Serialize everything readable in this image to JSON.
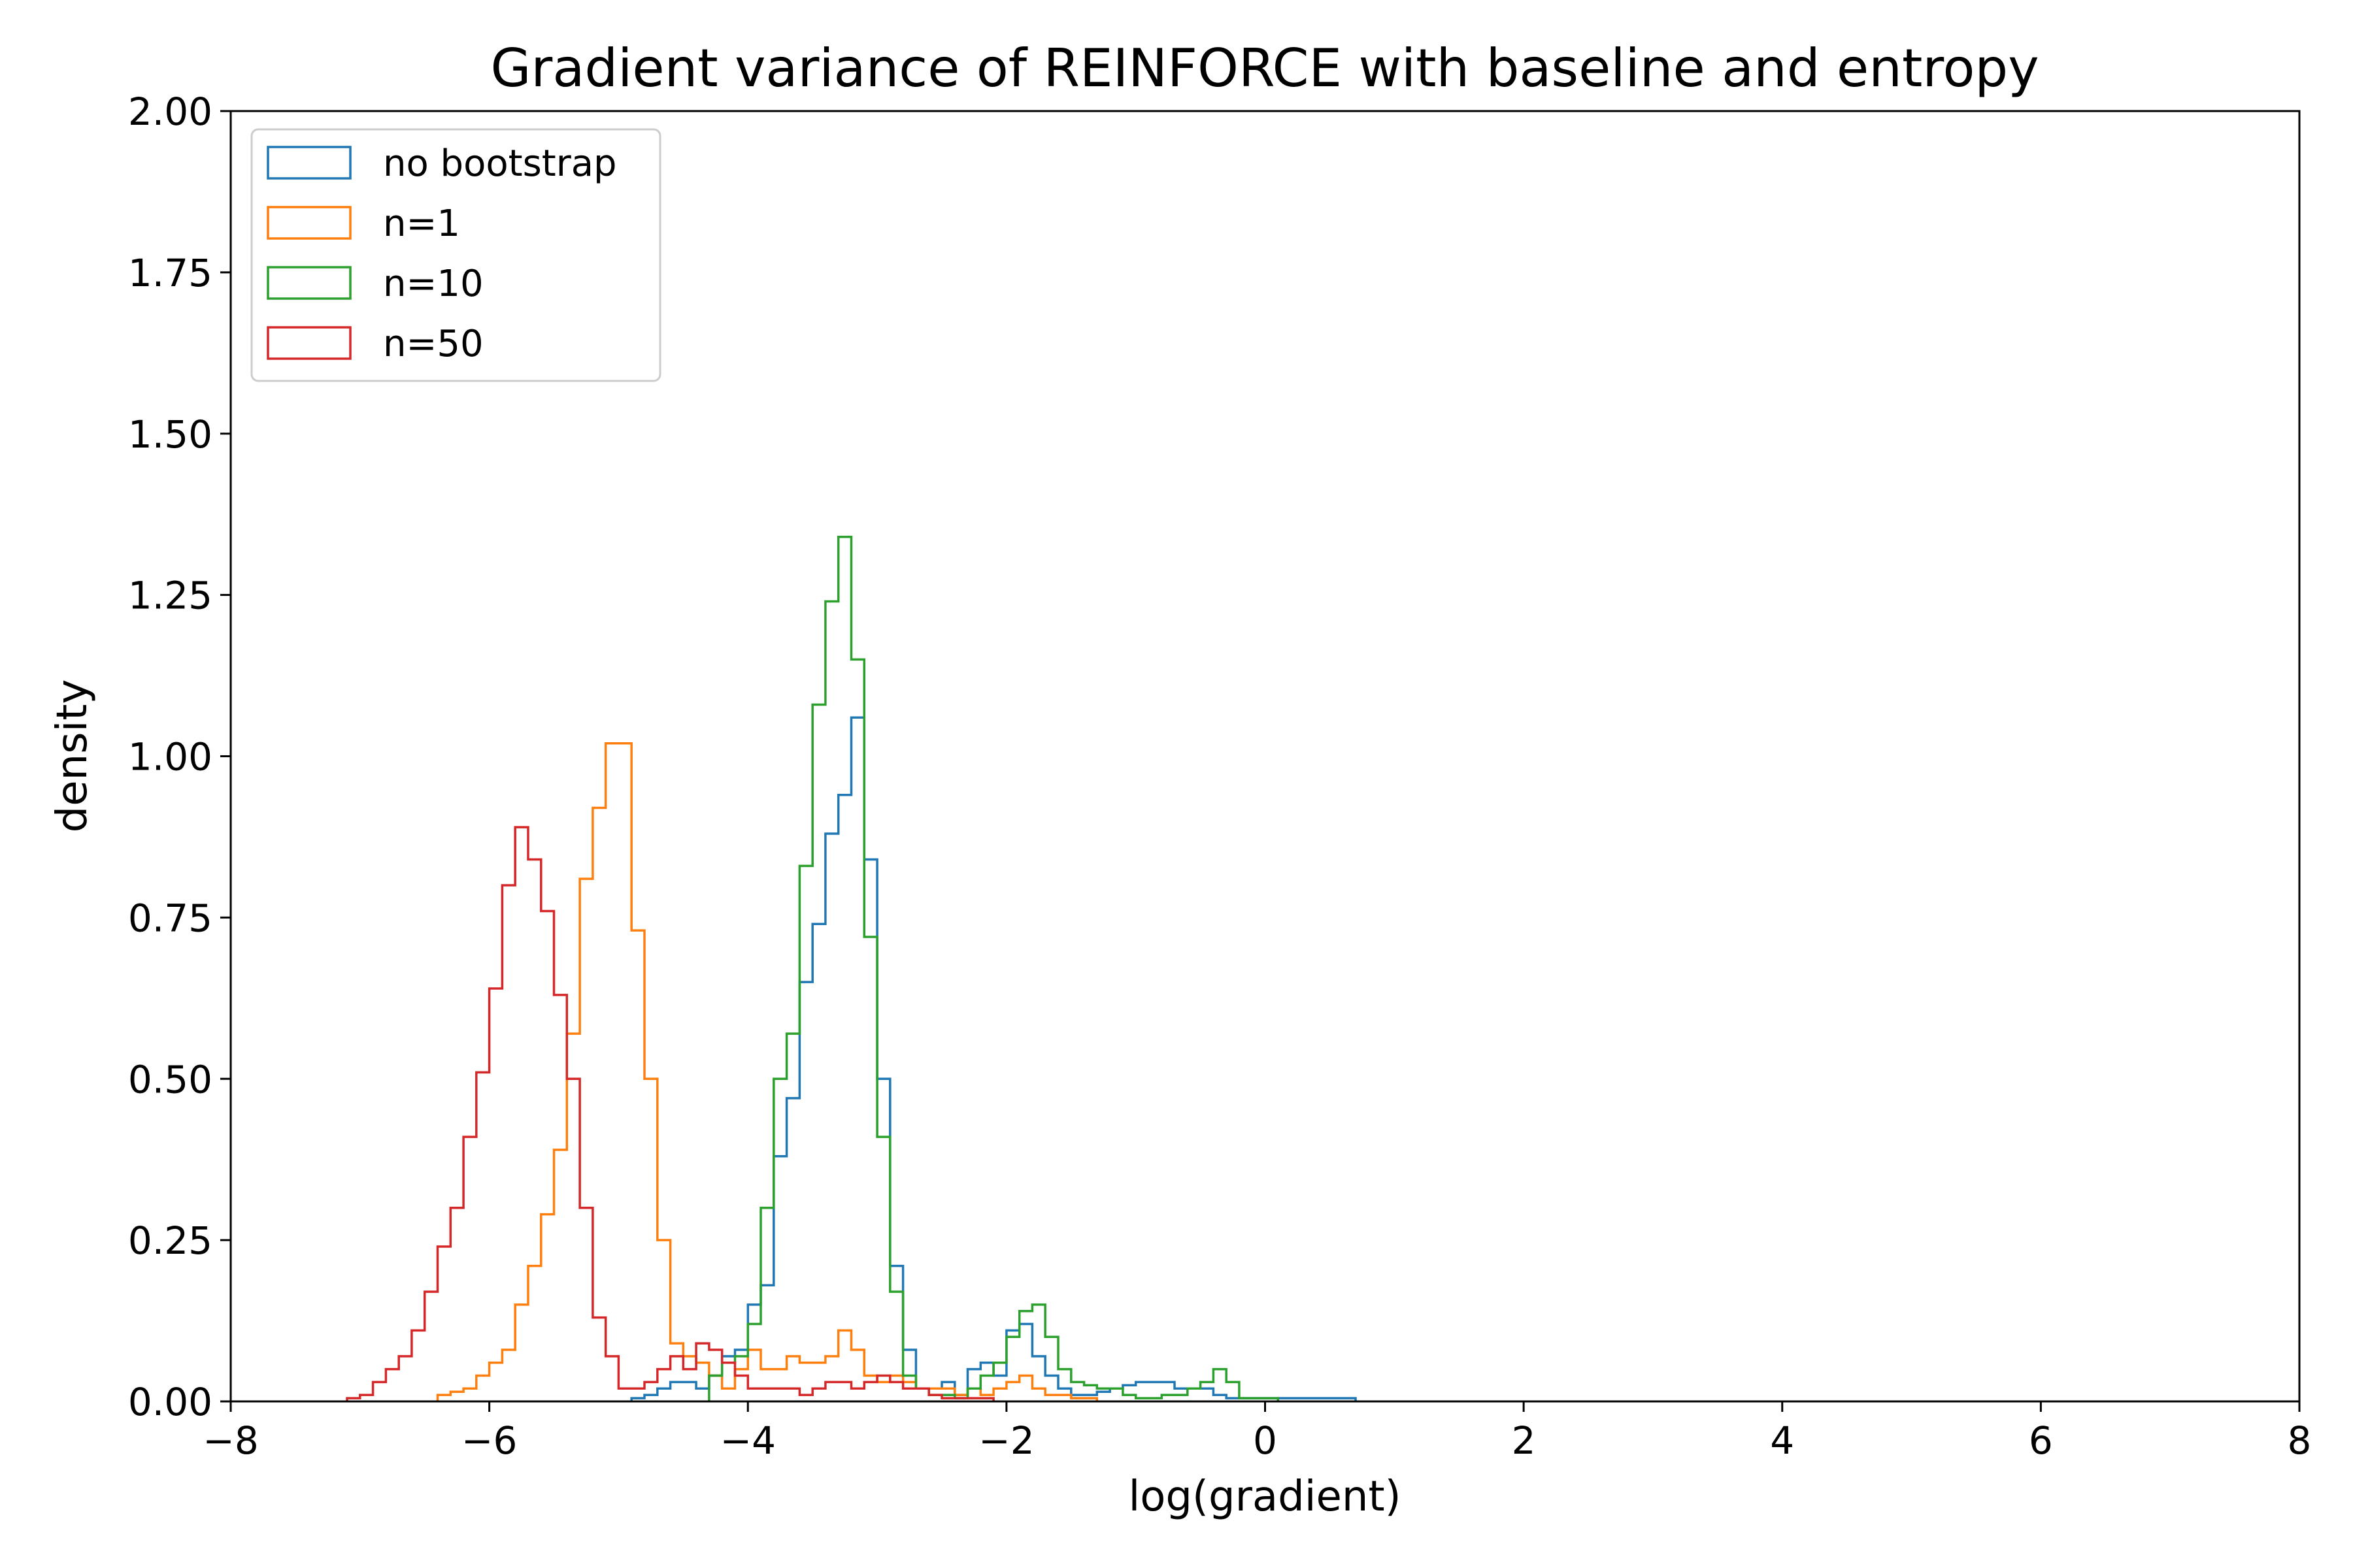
{
  "chart_data": {
    "type": "histogram",
    "title": "Gradient variance of REINFORCE with baseline and entropy",
    "xlabel": "log(gradient)",
    "ylabel": "density",
    "xlim": [
      -8,
      8
    ],
    "ylim": [
      0,
      2
    ],
    "xticks": [
      -8,
      -6,
      -4,
      -2,
      0,
      2,
      4,
      6,
      8
    ],
    "xtick_labels": [
      "−8",
      "−6",
      "−4",
      "−2",
      "0",
      "2",
      "4",
      "6",
      "8"
    ],
    "yticks": [
      0,
      0.25,
      0.5,
      0.75,
      1.0,
      1.25,
      1.5,
      1.75,
      2.0
    ],
    "ytick_labels": [
      "0.00",
      "0.25",
      "0.50",
      "0.75",
      "1.00",
      "1.25",
      "1.50",
      "1.75",
      "2.00"
    ],
    "grid": false,
    "legend_position": "upper-left",
    "series": [
      {
        "name": "no bootstrap",
        "color": "#1f77b4",
        "bin_edges": [
          -4.9,
          -4.8,
          -4.7,
          -4.6,
          -4.5,
          -4.4,
          -4.3,
          -4.2,
          -4.1,
          -4.0,
          -3.9,
          -3.8,
          -3.7,
          -3.6,
          -3.5,
          -3.4,
          -3.3,
          -3.2,
          -3.1,
          -3.0,
          -2.9,
          -2.8,
          -2.7,
          -2.6,
          -2.5,
          -2.4,
          -2.3,
          -2.2,
          -2.1,
          -2.0,
          -1.9,
          -1.8,
          -1.7,
          -1.6,
          -1.5,
          -1.4,
          -1.3,
          -1.2,
          -1.1,
          -1.0,
          -0.9,
          -0.8,
          -0.7,
          -0.6,
          -0.5,
          -0.4,
          -0.3,
          -0.2,
          -0.1,
          0.0,
          0.1,
          0.2,
          0.3,
          0.4,
          0.5,
          0.6,
          0.7
        ],
        "densities": [
          0.005,
          0.01,
          0.02,
          0.03,
          0.03,
          0.02,
          0.04,
          0.07,
          0.08,
          0.15,
          0.18,
          0.38,
          0.47,
          0.65,
          0.74,
          0.88,
          0.94,
          1.06,
          0.84,
          0.5,
          0.21,
          0.08,
          0.02,
          0.02,
          0.03,
          0.01,
          0.05,
          0.06,
          0.04,
          0.11,
          0.12,
          0.07,
          0.04,
          0.02,
          0.01,
          0.01,
          0.015,
          0.02,
          0.025,
          0.03,
          0.03,
          0.03,
          0.02,
          0.02,
          0.02,
          0.01,
          0.005,
          0.005,
          0.005,
          0.005,
          0.005,
          0.005,
          0.005,
          0.005,
          0.005,
          0.005
        ]
      },
      {
        "name": "n=1",
        "color": "#ff7f0e",
        "bin_edges": [
          -6.4,
          -6.3,
          -6.2,
          -6.1,
          -6.0,
          -5.9,
          -5.8,
          -5.7,
          -5.6,
          -5.5,
          -5.4,
          -5.3,
          -5.2,
          -5.1,
          -5.0,
          -4.9,
          -4.8,
          -4.7,
          -4.6,
          -4.5,
          -4.4,
          -4.3,
          -4.2,
          -4.1,
          -4.0,
          -3.9,
          -3.8,
          -3.7,
          -3.6,
          -3.5,
          -3.4,
          -3.3,
          -3.2,
          -3.1,
          -3.0,
          -2.9,
          -2.8,
          -2.7,
          -2.6,
          -2.5,
          -2.4,
          -2.3,
          -2.2,
          -2.1,
          -2.0,
          -1.9,
          -1.8,
          -1.7,
          -1.6,
          -1.5,
          -1.4,
          -1.3
        ],
        "densities": [
          0.01,
          0.015,
          0.02,
          0.04,
          0.06,
          0.08,
          0.15,
          0.21,
          0.29,
          0.39,
          0.57,
          0.81,
          0.92,
          1.02,
          1.02,
          0.73,
          0.5,
          0.25,
          0.09,
          0.07,
          0.06,
          0.04,
          0.02,
          0.05,
          0.08,
          0.05,
          0.05,
          0.07,
          0.06,
          0.06,
          0.07,
          0.11,
          0.08,
          0.04,
          0.03,
          0.04,
          0.03,
          0.02,
          0.02,
          0.02,
          0.01,
          0.02,
          0.01,
          0.02,
          0.03,
          0.04,
          0.02,
          0.01,
          0.01,
          0.005,
          0.005
        ]
      },
      {
        "name": "n=10",
        "color": "#2ca02c",
        "bin_edges": [
          -4.3,
          -4.2,
          -4.1,
          -4.0,
          -3.9,
          -3.8,
          -3.7,
          -3.6,
          -3.5,
          -3.4,
          -3.3,
          -3.2,
          -3.1,
          -3.0,
          -2.9,
          -2.8,
          -2.7,
          -2.6,
          -2.5,
          -2.4,
          -2.3,
          -2.2,
          -2.1,
          -2.0,
          -1.9,
          -1.8,
          -1.7,
          -1.6,
          -1.5,
          -1.4,
          -1.3,
          -1.2,
          -1.1,
          -1.0,
          -0.9,
          -0.8,
          -0.7,
          -0.6,
          -0.5,
          -0.4,
          -0.3,
          -0.2,
          -0.1,
          0.0,
          0.1
        ],
        "densities": [
          0.04,
          0.06,
          0.07,
          0.12,
          0.3,
          0.5,
          0.57,
          0.83,
          1.08,
          1.24,
          1.34,
          1.15,
          0.72,
          0.41,
          0.17,
          0.04,
          0.02,
          0.01,
          0.01,
          0.005,
          0.02,
          0.04,
          0.06,
          0.1,
          0.14,
          0.15,
          0.1,
          0.05,
          0.03,
          0.025,
          0.02,
          0.02,
          0.01,
          0.005,
          0.005,
          0.01,
          0.01,
          0.02,
          0.03,
          0.05,
          0.03,
          0.005,
          0.005,
          0.005
        ]
      },
      {
        "name": "n=50",
        "color": "#d62728",
        "bin_edges": [
          -7.1,
          -7.0,
          -6.9,
          -6.8,
          -6.7,
          -6.6,
          -6.5,
          -6.4,
          -6.3,
          -6.2,
          -6.1,
          -6.0,
          -5.9,
          -5.8,
          -5.7,
          -5.6,
          -5.5,
          -5.4,
          -5.3,
          -5.2,
          -5.1,
          -5.0,
          -4.9,
          -4.8,
          -4.7,
          -4.6,
          -4.5,
          -4.4,
          -4.3,
          -4.2,
          -4.1,
          -4.0,
          -3.9,
          -3.8,
          -3.7,
          -3.6,
          -3.5,
          -3.4,
          -3.3,
          -3.2,
          -3.1,
          -3.0,
          -2.9,
          -2.8,
          -2.7,
          -2.6,
          -2.5,
          -2.4,
          -2.3,
          -2.2,
          -2.1
        ],
        "densities": [
          0.005,
          0.01,
          0.03,
          0.05,
          0.07,
          0.11,
          0.17,
          0.24,
          0.3,
          0.41,
          0.51,
          0.64,
          0.8,
          0.89,
          0.84,
          0.76,
          0.63,
          0.5,
          0.3,
          0.13,
          0.07,
          0.02,
          0.02,
          0.03,
          0.05,
          0.07,
          0.05,
          0.09,
          0.08,
          0.06,
          0.04,
          0.02,
          0.02,
          0.02,
          0.02,
          0.01,
          0.02,
          0.03,
          0.03,
          0.02,
          0.03,
          0.04,
          0.03,
          0.02,
          0.02,
          0.01,
          0.005,
          0.005,
          0.005,
          0.005
        ]
      }
    ]
  }
}
